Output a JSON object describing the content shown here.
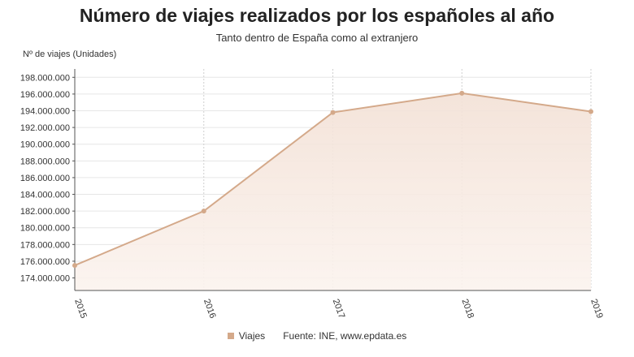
{
  "chart_data": {
    "type": "area",
    "title": "Número de viajes realizados por los españoles al año",
    "subtitle": "Tanto dentro de España como al extranjero",
    "ylabel": "Nº de viajes (Unidades)",
    "xlabel": "",
    "categories": [
      "2015",
      "2016",
      "2017",
      "2018",
      "2019"
    ],
    "series": [
      {
        "name": "Viajes",
        "values": [
          175500000,
          182000000,
          193800000,
          196100000,
          193900000
        ]
      }
    ],
    "ylim": [
      172500000,
      199000000
    ],
    "yticks": [
      174000000,
      176000000,
      178000000,
      180000000,
      182000000,
      184000000,
      186000000,
      188000000,
      190000000,
      192000000,
      194000000,
      196000000,
      198000000
    ],
    "ytick_labels": [
      "174.000.000",
      "176.000.000",
      "178.000.000",
      "180.000.000",
      "182.000.000",
      "184.000.000",
      "186.000.000",
      "188.000.000",
      "190.000.000",
      "192.000.000",
      "194.000.000",
      "196.000.000",
      "198.000.000"
    ],
    "grid": true,
    "legend": "bottom",
    "line_color": "#d4a98a"
  },
  "footer": {
    "legend_label": "Viajes",
    "source": "Fuente: INE, www.epdata.es"
  }
}
